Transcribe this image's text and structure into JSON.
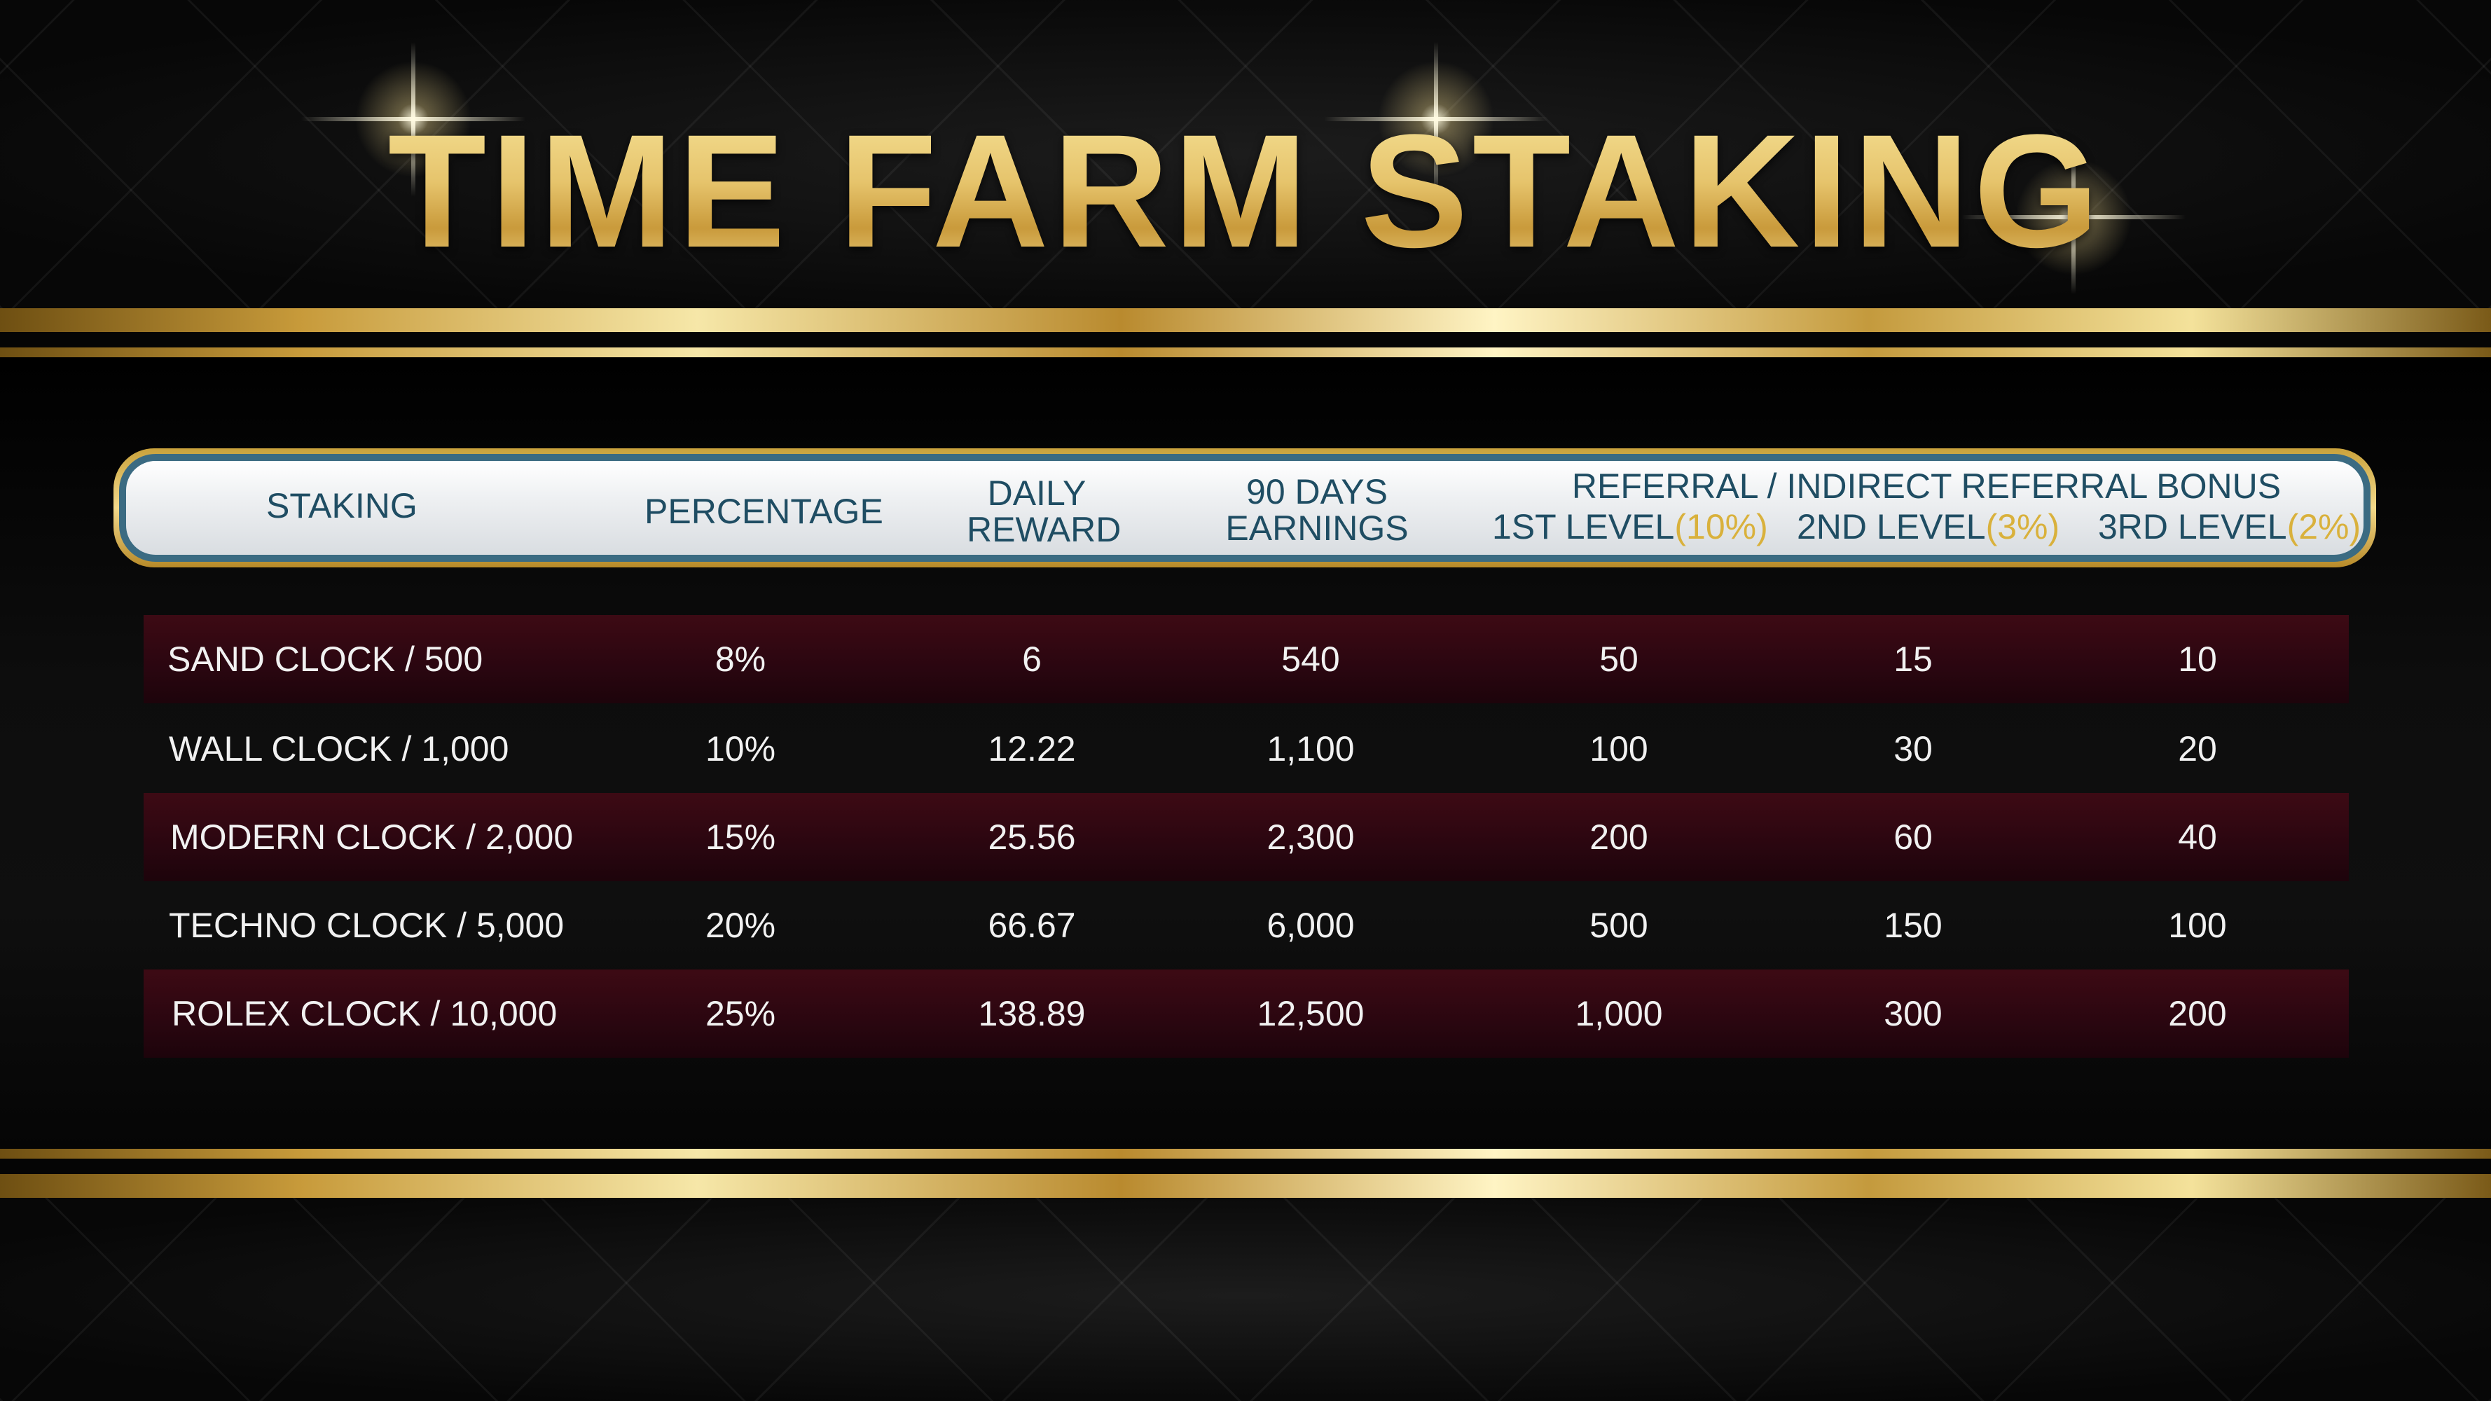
{
  "title": "TIME FARM STAKING",
  "colors": {
    "gold": "#e0c068",
    "header_text": "#1f4d63",
    "row_accent": "#3d0a14",
    "percent_gold": "#d9b13c"
  },
  "header": {
    "staking": "STAKING",
    "percentage": "PERCENTAGE",
    "daily_reward_line1": "DAILY",
    "daily_reward_line2": "REWARD",
    "earnings_line1": "90 DAYS",
    "earnings_line2": "EARNINGS",
    "referral_title": "REFERRAL / INDIRECT REFERRAL BONUS",
    "level1_label": "1ST LEVEL",
    "level1_pct": "(10%)",
    "level2_label": "2ND LEVEL",
    "level2_pct": "(3%)",
    "level3_label": "3RD LEVEL",
    "level3_pct": "(2%)"
  },
  "rows": [
    {
      "name": "SAND CLOCK / 500",
      "percentage": "8%",
      "daily": "6",
      "earnings": "540",
      "l1": "50",
      "l2": "15",
      "l3": "10"
    },
    {
      "name": "WALL CLOCK / 1,000",
      "percentage": "10%",
      "daily": "12.22",
      "earnings": "1,100",
      "l1": "100",
      "l2": "30",
      "l3": "20"
    },
    {
      "name": "MODERN CLOCK / 2,000",
      "percentage": "15%",
      "daily": "25.56",
      "earnings": "2,300",
      "l1": "200",
      "l2": "60",
      "l3": "40"
    },
    {
      "name": "TECHNO CLOCK / 5,000",
      "percentage": "20%",
      "daily": "66.67",
      "earnings": "6,000",
      "l1": "500",
      "l2": "150",
      "l3": "100"
    },
    {
      "name": "ROLEX CLOCK / 10,000",
      "percentage": "25%",
      "daily": "138.89",
      "earnings": "12,500",
      "l1": "1,000",
      "l2": "300",
      "l3": "200"
    }
  ]
}
